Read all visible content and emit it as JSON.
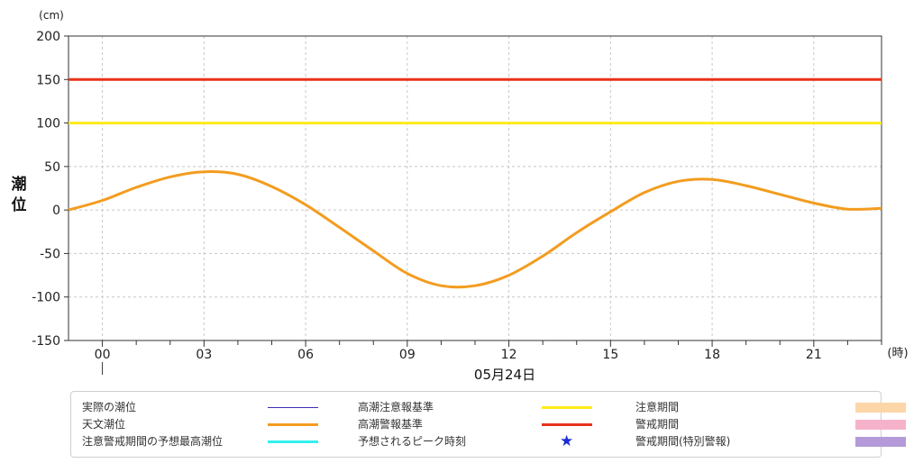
{
  "chart_data": {
    "type": "line",
    "y_unit": "(cm)",
    "y_axis_title": "潮位",
    "x_unit": "(時)",
    "date_label": "05月24日",
    "ylim": [
      -150,
      200
    ],
    "y_ticks": [
      -150,
      -100,
      -50,
      0,
      50,
      100,
      150,
      200
    ],
    "x_ticks": [
      "00",
      "03",
      "06",
      "09",
      "12",
      "15",
      "18",
      "21"
    ],
    "grid": true,
    "series": [
      {
        "name": "天文潮位",
        "color": "#f39c1f",
        "x_hours": [
          -1,
          0,
          1,
          2,
          3,
          4,
          5,
          6,
          7,
          8,
          9,
          10,
          11,
          12,
          13,
          14,
          15,
          16,
          17,
          18,
          19,
          20,
          21,
          22,
          23
        ],
        "values": [
          0,
          11,
          26,
          38,
          44,
          41,
          27,
          6,
          -20,
          -47,
          -73,
          -87,
          -87,
          -75,
          -53,
          -26,
          -2,
          20,
          33,
          35,
          28,
          18,
          8,
          1,
          2
        ]
      }
    ],
    "thresholds": [
      {
        "name": "高潮注意報基準",
        "value": 100,
        "color": "#ffeb1a"
      },
      {
        "name": "高潮警報基準",
        "value": 150,
        "color": "#e8321c"
      }
    ]
  },
  "legend": [
    {
      "label": "実際の潮位",
      "kind": "line",
      "color": "#3b2bb5",
      "thickness": 1
    },
    {
      "label": "天文潮位",
      "kind": "line",
      "color": "#f39c1f",
      "thickness": 3
    },
    {
      "label": "注意警戒期間の予想最高潮位",
      "kind": "line",
      "color": "#33f0f0",
      "thickness": 3
    },
    {
      "label": "高潮注意報基準",
      "kind": "line",
      "color": "#ffeb1a",
      "thickness": 3
    },
    {
      "label": "高潮警報基準",
      "kind": "line",
      "color": "#e8321c",
      "thickness": 3
    },
    {
      "label": "予想されるピーク時刻",
      "kind": "star",
      "color": "#1a2bd6",
      "thickness": 0
    },
    {
      "label": "注意期間",
      "kind": "box",
      "color": "#fcd6a8",
      "thickness": 0
    },
    {
      "label": "警戒期間",
      "kind": "box",
      "color": "#f7b2cb",
      "thickness": 0
    },
    {
      "label": "警戒期間(特別警報)",
      "kind": "box",
      "color": "#b49ad8",
      "thickness": 0
    }
  ]
}
